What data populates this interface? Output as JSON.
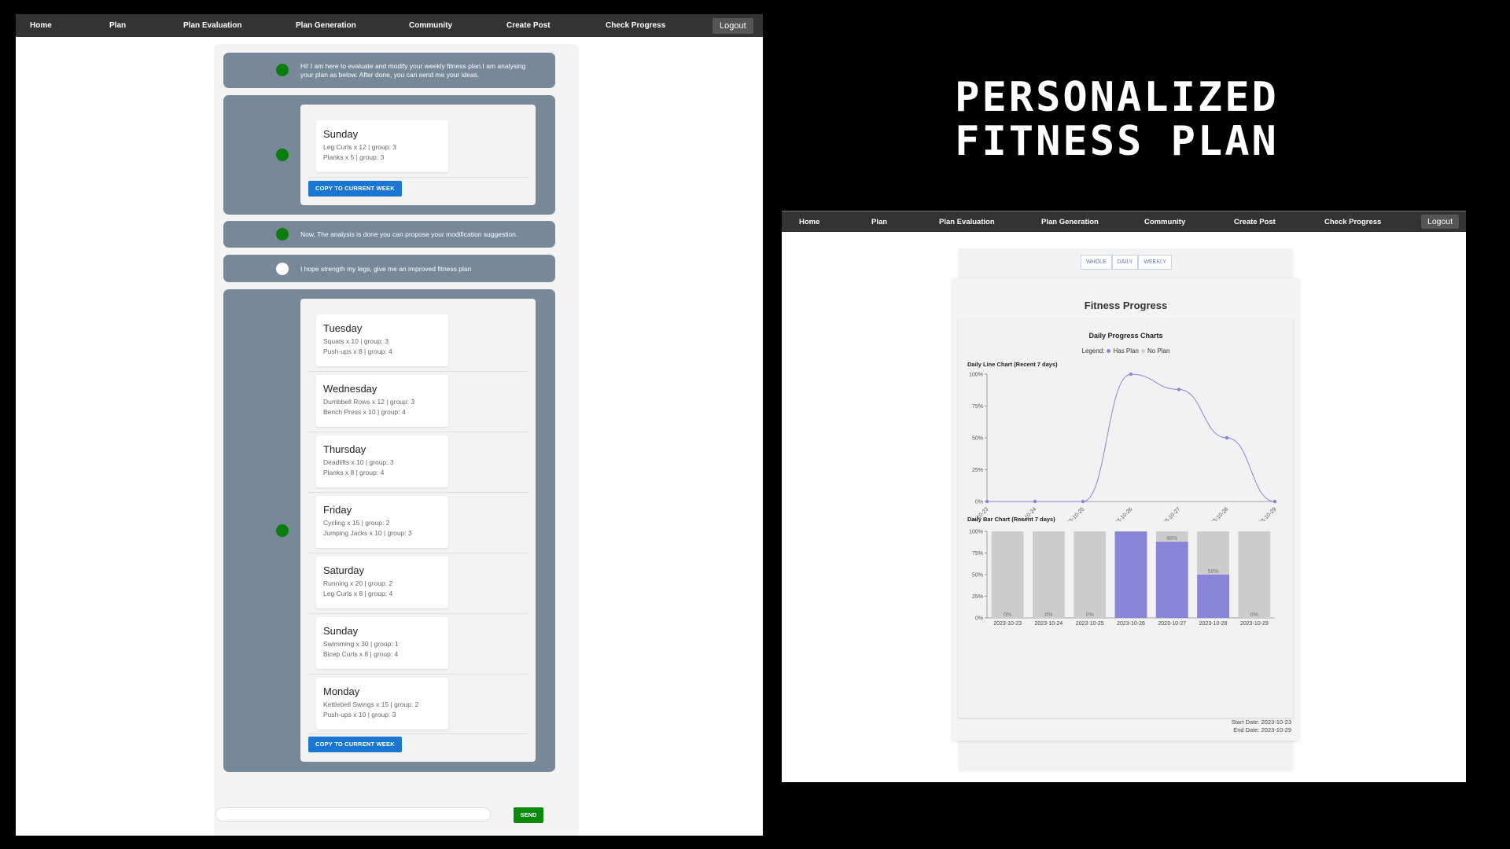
{
  "title": [
    "PERSONALIZED",
    "FITNESS PLAN"
  ],
  "nav": {
    "items": [
      "Home",
      "Plan",
      "Plan Evaluation",
      "Plan Generation",
      "Community",
      "Create Post",
      "Check Progress"
    ],
    "logout": "Logout"
  },
  "chat": {
    "intro": "Hi! I am here to evaluate and modify your weekly fitness plan.I am analysing your plan as below. After done, you can send me your ideas.",
    "current_plan": [
      {
        "day": "Sunday",
        "exercises": [
          "Leg Curls x 12 | group: 3",
          "Planks x 5 | group: 3"
        ]
      }
    ],
    "copy_label": "COPY TO CURRENT WEEK",
    "analysis_done": "Now, The analysis is done you can propose your modification suggestion.",
    "user_msg": "I hope strength my legs, give me an improved fitness plan",
    "improved_plan": [
      {
        "day": "Tuesday",
        "exercises": [
          "Squats x 10 | group: 3",
          "Push-ups x 8 | group: 4"
        ]
      },
      {
        "day": "Wednesday",
        "exercises": [
          "Dumbbell Rows x 12 | group: 3",
          "Bench Press x 10 | group: 4"
        ]
      },
      {
        "day": "Thursday",
        "exercises": [
          "Deadlifts x 10 | group: 3",
          "Planks x 8 | group: 4"
        ]
      },
      {
        "day": "Friday",
        "exercises": [
          "Cycling x 15 | group: 2",
          "Jumping Jacks x 10 | group: 3"
        ]
      },
      {
        "day": "Saturday",
        "exercises": [
          "Running x 20 | group: 2",
          "Leg Curls x 8 | group: 4"
        ]
      },
      {
        "day": "Sunday",
        "exercises": [
          "Swimming x 30 | group: 1",
          "Bicep Curls x 8 | group: 4"
        ]
      },
      {
        "day": "Monday",
        "exercises": [
          "Kettlebell Swings x 15 | group: 2",
          "Push-ups x 10 | group: 3"
        ]
      }
    ],
    "input_value": "",
    "send_label": "SEND"
  },
  "progress": {
    "tabs": [
      "WHOLE",
      "DAILY",
      "WEEKLY"
    ],
    "title": "Fitness Progress",
    "charts_title": "Daily Progress Charts",
    "legend_prefix": "Legend:",
    "legend_has_plan": "Has Plan",
    "legend_no_plan": "No Plan",
    "line_title": "Daily Line Chart (Recent 7 days)",
    "bar_title": "Daily Bar Chart (Recent 7 days)",
    "start_date": "Start Date: 2023-10-23",
    "end_date": "End Date: 2023-10-29",
    "colors": {
      "has_plan": "#8884d8",
      "no_plan": "#cccccc"
    }
  },
  "chart_data": [
    {
      "type": "line",
      "title": "Daily Line Chart (Recent 7 days)",
      "x": [
        "2023-10-23",
        "2023-10-24",
        "2023-10-25",
        "2023-10-26",
        "2023-10-27",
        "2023-10-28",
        "2023-10-29"
      ],
      "y": [
        0,
        0,
        0,
        100,
        88,
        50,
        0
      ],
      "yticks": [
        "0%",
        "25%",
        "50%",
        "75%",
        "100%"
      ],
      "ylim": [
        0,
        100
      ]
    },
    {
      "type": "bar",
      "title": "Daily Bar Chart (Recent 7 days)",
      "categories": [
        "2023-10-23",
        "2023-10-24",
        "2023-10-25",
        "2023-10-26",
        "2023-10-27",
        "2023-10-28",
        "2023-10-29"
      ],
      "values": [
        0,
        0,
        0,
        100,
        88,
        50,
        0
      ],
      "has_plan": [
        false,
        false,
        false,
        true,
        true,
        true,
        false
      ],
      "value_labels": [
        "0%",
        "0%",
        "0%",
        "",
        "88%",
        "50%",
        "0%"
      ],
      "yticks": [
        "0%",
        "25%",
        "50%",
        "75%",
        "100%"
      ],
      "ylim": [
        0,
        100
      ]
    }
  ]
}
